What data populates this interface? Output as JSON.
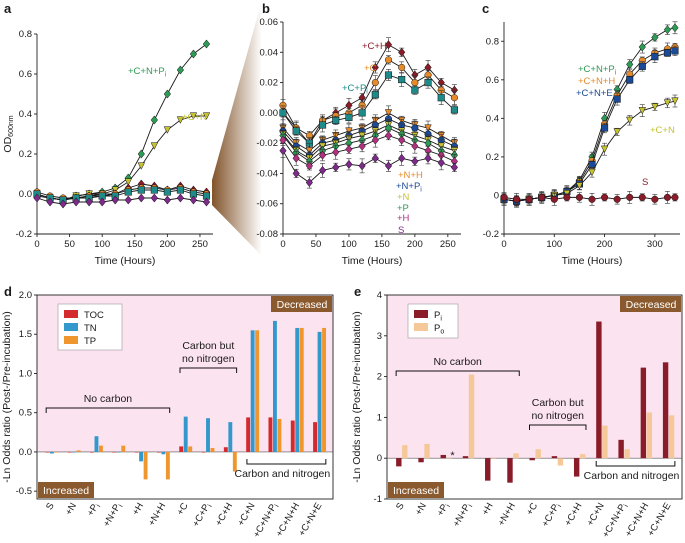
{
  "chart_data": [
    {
      "id": "a",
      "panel_label": "a",
      "type": "line",
      "xlabel": "Time (Hours)",
      "ylabel": "OD600nm",
      "xlim": [
        0,
        270
      ],
      "ylim": [
        -0.2,
        0.8
      ],
      "xticks": [
        "0",
        "50",
        "100",
        "150",
        "200",
        "250"
      ],
      "yticks": [
        "-0.2",
        "0.0",
        "0.2",
        "0.4",
        "0.6",
        "0.8"
      ],
      "x": [
        0,
        20,
        40,
        60,
        80,
        100,
        120,
        140,
        160,
        180,
        200,
        220,
        240,
        260
      ],
      "series": [
        {
          "name": "+C+N+Pi",
          "label_main": "+C+N+P",
          "label_sub": "i",
          "color": "#2e9a55",
          "marker": "diamond",
          "values": [
            0.0,
            -0.02,
            -0.03,
            -0.01,
            0.0,
            0.01,
            0.03,
            0.08,
            0.2,
            0.37,
            0.5,
            0.62,
            0.7,
            0.75
          ]
        },
        {
          "name": "+C+N",
          "label_main": "+C+N",
          "label_sub": "",
          "color": "#c6c234",
          "marker": "tri",
          "values": [
            0.0,
            -0.02,
            -0.03,
            -0.01,
            0.0,
            0.0,
            0.02,
            0.06,
            0.14,
            0.24,
            0.32,
            0.37,
            0.39,
            0.39
          ]
        },
        {
          "name": "+C+H",
          "label_main": "",
          "label_sub": "",
          "color": "#8a1c2a",
          "marker": "diamond",
          "values": [
            -0.01,
            -0.02,
            -0.03,
            -0.02,
            -0.01,
            -0.01,
            0.0,
            0.03,
            0.05,
            0.04,
            0.02,
            0.04,
            0.02,
            0.01
          ]
        },
        {
          "name": "+C",
          "label_main": "",
          "label_sub": "",
          "color": "#e58b2c",
          "marker": "circle",
          "values": [
            0.01,
            -0.01,
            -0.02,
            -0.02,
            -0.01,
            0.0,
            0.0,
            0.02,
            0.03,
            0.03,
            0.02,
            0.03,
            0.01,
            0.0
          ]
        },
        {
          "name": "+C+Pi",
          "label_main": "",
          "label_sub": "",
          "color": "#1f8a8a",
          "marker": "square",
          "values": [
            0.0,
            -0.02,
            -0.03,
            -0.02,
            -0.02,
            -0.01,
            -0.01,
            0.01,
            0.02,
            0.02,
            0.01,
            0.02,
            0.0,
            -0.01
          ]
        },
        {
          "name": "S",
          "label_main": "",
          "label_sub": "",
          "color": "#7d2a8a",
          "marker": "diamond",
          "values": [
            -0.02,
            -0.04,
            -0.05,
            -0.04,
            -0.04,
            -0.04,
            -0.03,
            -0.03,
            -0.02,
            -0.02,
            -0.03,
            -0.02,
            -0.03,
            -0.04
          ]
        }
      ]
    },
    {
      "id": "b",
      "panel_label": "b",
      "type": "line",
      "xlabel": "Time (Hours)",
      "ylabel": "",
      "xlim": [
        0,
        270
      ],
      "ylim": [
        -0.08,
        0.06
      ],
      "xticks": [
        "0",
        "50",
        "100",
        "150",
        "200",
        "250"
      ],
      "yticks": [
        "-0.08",
        "-0.06",
        "-0.04",
        "-0.02",
        "0.00",
        "0.02",
        "0.04",
        "0.06"
      ],
      "x": [
        0,
        20,
        40,
        60,
        80,
        100,
        120,
        140,
        160,
        180,
        200,
        220,
        240,
        260
      ],
      "series": [
        {
          "name": "+C+H",
          "label_main": "+C+H",
          "label_sub": "",
          "color": "#8a1c2a",
          "marker": "diamond",
          "values": [
            0.0,
            -0.01,
            -0.02,
            -0.005,
            0.0,
            0.005,
            0.01,
            0.03,
            0.045,
            0.04,
            0.025,
            0.03,
            0.02,
            0.015
          ]
        },
        {
          "name": "+C",
          "label_main": "+C",
          "label_sub": "",
          "color": "#e58b2c",
          "marker": "circle",
          "values": [
            0.005,
            -0.01,
            -0.015,
            -0.005,
            -0.002,
            0.0,
            0.005,
            0.02,
            0.035,
            0.03,
            0.02,
            0.025,
            0.015,
            0.01
          ]
        },
        {
          "name": "+C+Pi",
          "label_main": "+C+P",
          "label_sub": "i",
          "color": "#1f8a8a",
          "marker": "square",
          "values": [
            0.0,
            -0.012,
            -0.02,
            -0.008,
            -0.005,
            -0.003,
            0.0,
            0.012,
            0.025,
            0.022,
            0.015,
            0.02,
            0.01,
            0.002
          ]
        },
        {
          "name": "+N+H",
          "label_main": "+N+H",
          "label_sub": "",
          "color": "#e58b2c",
          "marker": "tri",
          "values": [
            -0.01,
            -0.02,
            -0.025,
            -0.018,
            -0.015,
            -0.012,
            -0.01,
            -0.005,
            0.0,
            -0.005,
            -0.008,
            -0.01,
            -0.015,
            -0.02
          ]
        },
        {
          "name": "+N+Pi",
          "label_main": "+N+P",
          "label_sub": "i",
          "color": "#1b4a96",
          "marker": "circle",
          "values": [
            -0.012,
            -0.022,
            -0.028,
            -0.02,
            -0.018,
            -0.015,
            -0.012,
            -0.008,
            -0.004,
            -0.008,
            -0.01,
            -0.014,
            -0.018,
            -0.022
          ]
        },
        {
          "name": "+N",
          "label_main": "+N",
          "label_sub": "",
          "color": "#c6c234",
          "marker": "tri",
          "values": [
            -0.014,
            -0.025,
            -0.03,
            -0.022,
            -0.02,
            -0.017,
            -0.015,
            -0.012,
            -0.008,
            -0.012,
            -0.015,
            -0.018,
            -0.022,
            -0.025
          ]
        },
        {
          "name": "+P",
          "label_main": "+P",
          "label_sub": "",
          "color": "#2e9a55",
          "marker": "diamond",
          "values": [
            -0.015,
            -0.026,
            -0.032,
            -0.025,
            -0.022,
            -0.02,
            -0.018,
            -0.015,
            -0.01,
            -0.014,
            -0.018,
            -0.02,
            -0.025,
            -0.028
          ]
        },
        {
          "name": "+H",
          "label_main": "+H",
          "label_sub": "",
          "color": "#b0317f",
          "marker": "diamond",
          "values": [
            -0.018,
            -0.03,
            -0.035,
            -0.028,
            -0.026,
            -0.024,
            -0.022,
            -0.018,
            -0.015,
            -0.018,
            -0.022,
            -0.025,
            -0.028,
            -0.032
          ]
        },
        {
          "name": "S",
          "label_main": "S",
          "label_sub": "",
          "color": "#7d2a8a",
          "marker": "diamond",
          "values": [
            -0.025,
            -0.04,
            -0.046,
            -0.038,
            -0.036,
            -0.034,
            -0.035,
            -0.03,
            -0.035,
            -0.03,
            -0.032,
            -0.03,
            -0.033,
            -0.036
          ]
        }
      ]
    },
    {
      "id": "c",
      "panel_label": "c",
      "type": "line",
      "xlabel": "Time (Hours)",
      "ylabel": "",
      "xlim": [
        0,
        350
      ],
      "ylim": [
        -0.2,
        0.9
      ],
      "xticks": [
        "0",
        "100",
        "200",
        "300"
      ],
      "yticks": [
        "-0.2",
        "0",
        "0.2",
        "0.4",
        "0.6",
        "0.8"
      ],
      "x": [
        0,
        25,
        50,
        75,
        100,
        125,
        150,
        175,
        200,
        225,
        250,
        275,
        300,
        325,
        340
      ],
      "series": [
        {
          "name": "+C+N+Pi",
          "label_main": "+C+N+P",
          "label_sub": "i",
          "color": "#2e9a55",
          "marker": "diamond",
          "values": [
            -0.02,
            -0.03,
            -0.02,
            -0.01,
            0.0,
            0.02,
            0.08,
            0.2,
            0.4,
            0.55,
            0.68,
            0.77,
            0.82,
            0.86,
            0.87
          ]
        },
        {
          "name": "+C+N+H",
          "label_main": "+C+N+H",
          "label_sub": "",
          "color": "#e58b2c",
          "marker": "circle",
          "values": [
            -0.02,
            -0.03,
            -0.02,
            -0.01,
            0.0,
            0.02,
            0.07,
            0.18,
            0.37,
            0.52,
            0.63,
            0.7,
            0.74,
            0.76,
            0.77
          ]
        },
        {
          "name": "+C+N+E",
          "label_main": "+C+N+E",
          "label_sub": "",
          "color": "#1b4a96",
          "marker": "square",
          "values": [
            -0.02,
            -0.03,
            -0.02,
            -0.01,
            0.0,
            0.02,
            0.06,
            0.16,
            0.35,
            0.5,
            0.6,
            0.67,
            0.72,
            0.74,
            0.75
          ]
        },
        {
          "name": "+C+N",
          "label_main": "+C+N",
          "label_sub": "",
          "color": "#c6c234",
          "marker": "tri",
          "values": [
            -0.02,
            -0.03,
            -0.02,
            -0.01,
            0.0,
            0.01,
            0.05,
            0.12,
            0.24,
            0.33,
            0.39,
            0.44,
            0.46,
            0.48,
            0.49
          ]
        },
        {
          "name": "S",
          "label_main": "S",
          "label_sub": "",
          "color": "#8a1c2a",
          "marker": "circle",
          "values": [
            -0.01,
            -0.02,
            -0.02,
            -0.01,
            -0.02,
            -0.01,
            -0.01,
            -0.02,
            -0.01,
            -0.02,
            -0.01,
            -0.01,
            -0.02,
            -0.01,
            -0.01
          ]
        }
      ]
    },
    {
      "id": "d",
      "panel_label": "d",
      "type": "bar",
      "ylabel": "-Ln Odds ratio (Post-/Pre-incubation)",
      "ylim": [
        -0.6,
        2.0
      ],
      "yticks": [
        "-0.5",
        "0.0",
        "0.5",
        "1.0",
        "1.5",
        "2.0"
      ],
      "categories": [
        "S",
        "+N",
        "+Pi",
        "+N+Pi",
        "+H",
        "+N+H",
        "+C",
        "+C+Pi",
        "+C+H",
        "+C+N",
        "+C+N+Pi",
        "+C+N+H",
        "+C+N+E"
      ],
      "category_labels": [
        [
          "S",
          ""
        ],
        [
          "+N",
          ""
        ],
        [
          "+P",
          "i"
        ],
        [
          "+N+P",
          "i"
        ],
        [
          "+H",
          ""
        ],
        [
          "+N+H",
          ""
        ],
        [
          "+C",
          ""
        ],
        [
          "+C+P",
          "i"
        ],
        [
          "+C+H",
          ""
        ],
        [
          "+C+N",
          ""
        ],
        [
          "+C+N+P",
          "i"
        ],
        [
          "+C+N+H",
          ""
        ],
        [
          "+C+N+E",
          ""
        ]
      ],
      "series": [
        {
          "name": "TOC",
          "color": "#d42a2e",
          "values": [
            0.0,
            0.0,
            0.0,
            0.0,
            0.0,
            0.0,
            0.07,
            0.0,
            0.06,
            0.44,
            0.44,
            0.4,
            0.38
          ]
        },
        {
          "name": "TN",
          "color": "#3399cc",
          "values": [
            -0.02,
            0.0,
            0.2,
            0.0,
            -0.12,
            -0.03,
            0.45,
            0.43,
            0.38,
            1.55,
            1.67,
            1.58,
            1.53
          ]
        },
        {
          "name": "TP",
          "color": "#f0962e",
          "values": [
            0.0,
            0.02,
            0.08,
            0.08,
            -0.35,
            -0.35,
            0.07,
            0.05,
            -0.25,
            1.55,
            0.42,
            1.58,
            1.58
          ]
        }
      ],
      "annotations": {
        "increased": "Increased",
        "decreased": "Decreased",
        "no_carbon": "No carbon",
        "carbon_no_n_1": "Carbon but",
        "carbon_no_n_2": "no nitrogen",
        "carbon_and_n": "Carbon and nitrogen"
      },
      "colors": {
        "background": "#fce3f0",
        "tag": "#8a5a2e"
      }
    },
    {
      "id": "e",
      "panel_label": "e",
      "type": "bar",
      "ylabel": "-Ln Odds ratio (Post-/Pre-incubation)",
      "ylim": [
        -1.0,
        4.0
      ],
      "yticks": [
        "-1",
        "0",
        "1",
        "2",
        "3",
        "4"
      ],
      "categories": [
        "S",
        "+N",
        "+Pi",
        "+N+Pi",
        "+H",
        "+N+H",
        "+C",
        "+C+Pi",
        "+C+H",
        "+C+N",
        "+C+N+Pi",
        "+C+N+H",
        "+C+N+E"
      ],
      "category_labels": [
        [
          "S",
          ""
        ],
        [
          "+N",
          ""
        ],
        [
          "+P",
          "i"
        ],
        [
          "+N+P",
          "i"
        ],
        [
          "+H",
          ""
        ],
        [
          "+N+H",
          ""
        ],
        [
          "+C",
          ""
        ],
        [
          "+C+P",
          "i"
        ],
        [
          "+C+H",
          ""
        ],
        [
          "+C+N",
          ""
        ],
        [
          "+C+N+P",
          "i"
        ],
        [
          "+C+N+H",
          ""
        ],
        [
          "+C+N+E",
          ""
        ]
      ],
      "series": [
        {
          "name": "Pi",
          "label_main": "P",
          "label_sub": "i",
          "color": "#8a1c2a",
          "values": [
            -0.2,
            -0.1,
            0.08,
            0.05,
            -0.55,
            -0.6,
            -0.05,
            0.05,
            -0.45,
            3.35,
            0.45,
            2.22,
            2.35
          ]
        },
        {
          "name": "Po",
          "label_main": "P",
          "label_sub": "o",
          "color": "#f5c89a",
          "values": [
            0.32,
            0.35,
            0.0,
            2.05,
            0.0,
            0.12,
            0.22,
            -0.18,
            0.1,
            0.8,
            0.22,
            1.12,
            1.05
          ]
        }
      ],
      "star": "*",
      "annotations": {
        "increased": "Increased",
        "decreased": "Decreased",
        "no_carbon": "No carbon",
        "carbon_no_n_1": "Carbon but",
        "carbon_no_n_2": "no nitrogen",
        "carbon_and_n": "Carbon and nitrogen"
      },
      "colors": {
        "background": "#fce3f0",
        "tag": "#8a5a2e"
      }
    }
  ]
}
